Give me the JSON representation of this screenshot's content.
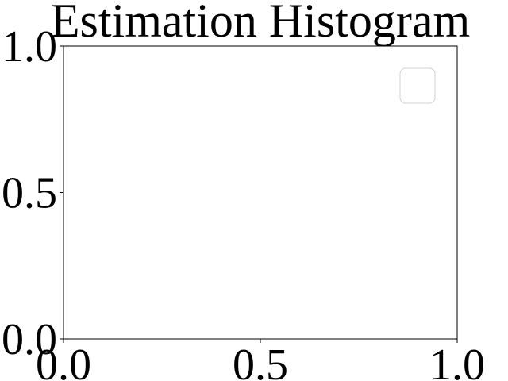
{
  "chart_data": {
    "type": "bar",
    "title": "Estimation Histogram",
    "xlabel": "",
    "ylabel": "",
    "xlim": [
      0.0,
      1.0
    ],
    "ylim": [
      0.0,
      1.0
    ],
    "xticks": [
      0.0,
      0.5,
      1.0
    ],
    "yticks": [
      0.0,
      0.5,
      1.0
    ],
    "xtick_labels": [
      "0.0",
      "0.5",
      "1.0"
    ],
    "ytick_labels": [
      "0.0",
      "0.5",
      "1.0"
    ],
    "categories": [],
    "values": [],
    "series": [],
    "grid": false,
    "legend": {
      "placement": "top-right",
      "entries": []
    },
    "colors": {
      "axes": "#000000",
      "background": "#ffffff",
      "legend_border": "#cccccc"
    }
  }
}
